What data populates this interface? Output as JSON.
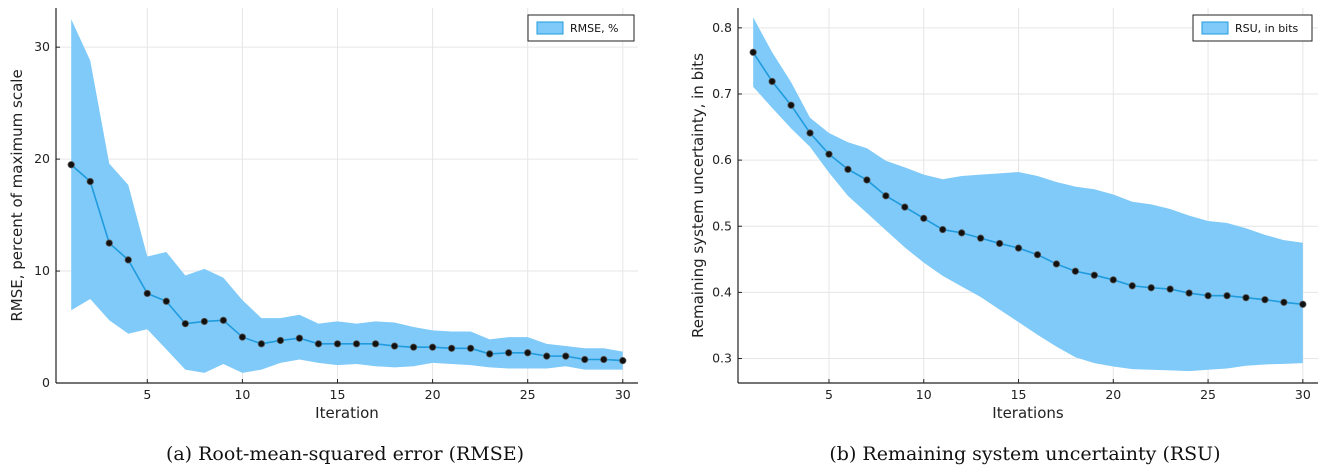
{
  "chart_data": [
    {
      "type": "line",
      "caption": "(a) Root-mean-squared error (RMSE)",
      "xlabel": "Iteration",
      "ylabel": "RMSE, percent of maximum scale",
      "xlim": [
        0.2,
        30.8
      ],
      "ylim": [
        0,
        33.5
      ],
      "xticks": [
        5,
        10,
        15,
        20,
        25,
        30
      ],
      "yticks": [
        0,
        10,
        20,
        30
      ],
      "grid": true,
      "legend_position": "top-right",
      "x": [
        1,
        2,
        3,
        4,
        5,
        6,
        7,
        8,
        9,
        10,
        11,
        12,
        13,
        14,
        15,
        16,
        17,
        18,
        19,
        20,
        21,
        22,
        23,
        24,
        25,
        26,
        27,
        28,
        29,
        30
      ],
      "series": [
        {
          "name": "RMSE, %",
          "color": "#1f9bde",
          "band_color": "#7fcaf8",
          "values": [
            19.5,
            18.0,
            12.5,
            11.0,
            8.0,
            7.3,
            5.3,
            5.5,
            5.6,
            4.1,
            3.5,
            3.8,
            4.0,
            3.5,
            3.5,
            3.5,
            3.5,
            3.3,
            3.2,
            3.2,
            3.1,
            3.1,
            2.6,
            2.7,
            2.7,
            2.4,
            2.4,
            2.1,
            2.1,
            2.0
          ],
          "upper": [
            32.5,
            28.8,
            19.6,
            17.7,
            11.3,
            11.7,
            9.6,
            10.2,
            9.4,
            7.4,
            5.8,
            5.8,
            6.1,
            5.3,
            5.5,
            5.3,
            5.5,
            5.4,
            5.0,
            4.7,
            4.6,
            4.6,
            3.9,
            4.1,
            4.1,
            3.5,
            3.3,
            3.1,
            3.1,
            2.8
          ],
          "lower": [
            6.5,
            7.5,
            5.6,
            4.4,
            4.8,
            3.0,
            1.2,
            0.9,
            1.7,
            0.9,
            1.2,
            1.8,
            2.1,
            1.8,
            1.6,
            1.7,
            1.5,
            1.4,
            1.5,
            1.8,
            1.7,
            1.6,
            1.4,
            1.3,
            1.3,
            1.3,
            1.5,
            1.2,
            1.2,
            1.2
          ]
        }
      ]
    },
    {
      "type": "line",
      "caption": "(b) Remaining system uncertainty (RSU)",
      "xlabel": "Iterations",
      "ylabel": "Remaining system uncertainty, in bits",
      "xlim": [
        0.2,
        30.8
      ],
      "ylim": [
        0.263,
        0.83
      ],
      "xticks": [
        5,
        10,
        15,
        20,
        25,
        30
      ],
      "yticks": [
        0.3,
        0.4,
        0.5,
        0.6,
        0.7,
        0.8
      ],
      "grid": true,
      "legend_position": "top-right",
      "x": [
        1,
        2,
        3,
        4,
        5,
        6,
        7,
        8,
        9,
        10,
        11,
        12,
        13,
        14,
        15,
        16,
        17,
        18,
        19,
        20,
        21,
        22,
        23,
        24,
        25,
        26,
        27,
        28,
        29,
        30
      ],
      "series": [
        {
          "name": "RSU, in bits",
          "color": "#1f9bde",
          "band_color": "#7fcaf8",
          "values": [
            0.763,
            0.719,
            0.683,
            0.641,
            0.609,
            0.586,
            0.57,
            0.546,
            0.529,
            0.512,
            0.495,
            0.49,
            0.482,
            0.474,
            0.467,
            0.457,
            0.443,
            0.432,
            0.426,
            0.419,
            0.41,
            0.407,
            0.405,
            0.399,
            0.395,
            0.395,
            0.392,
            0.389,
            0.385,
            0.382
          ],
          "upper": [
            0.816,
            0.763,
            0.718,
            0.664,
            0.641,
            0.627,
            0.618,
            0.599,
            0.589,
            0.578,
            0.571,
            0.576,
            0.578,
            0.58,
            0.582,
            0.576,
            0.567,
            0.56,
            0.556,
            0.548,
            0.537,
            0.533,
            0.526,
            0.516,
            0.508,
            0.505,
            0.497,
            0.487,
            0.479,
            0.475
          ],
          "lower": [
            0.711,
            0.679,
            0.648,
            0.62,
            0.581,
            0.546,
            0.52,
            0.494,
            0.468,
            0.445,
            0.425,
            0.409,
            0.393,
            0.374,
            0.355,
            0.336,
            0.318,
            0.302,
            0.293,
            0.288,
            0.284,
            0.283,
            0.282,
            0.281,
            0.283,
            0.285,
            0.289,
            0.291,
            0.292,
            0.293
          ]
        }
      ]
    }
  ]
}
